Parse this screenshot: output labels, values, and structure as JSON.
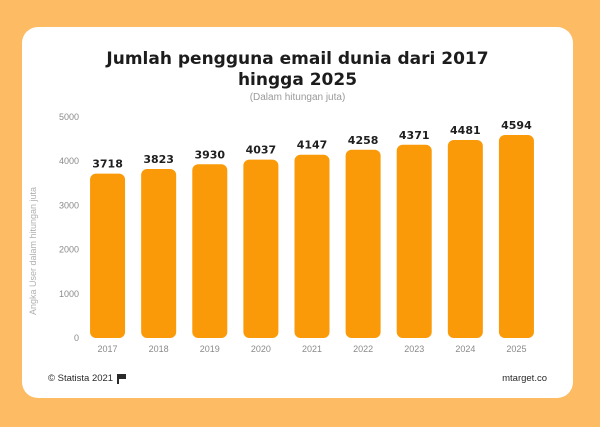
{
  "chart_data": {
    "type": "bar",
    "title_line1": "Jumlah pengguna email dunia dari 2017",
    "title_line2": "hingga 2025",
    "subtitle": "(Dalam hitungan juta)",
    "ylabel": "Angka User dalam hitungan juta",
    "xlabel": "",
    "categories": [
      "2017",
      "2018",
      "2019",
      "2020",
      "2021",
      "2022",
      "2023",
      "2024",
      "2025"
    ],
    "values": [
      3718,
      3823,
      3930,
      4037,
      4147,
      4258,
      4371,
      4481,
      4594
    ],
    "ylim": [
      0,
      5000
    ],
    "yticks": [
      0,
      1000,
      2000,
      3000,
      4000,
      5000
    ],
    "grid": false,
    "bar_color": "#fb9a08"
  },
  "footer": {
    "source": "© Statista 2021",
    "brand": "mtarget.co"
  }
}
